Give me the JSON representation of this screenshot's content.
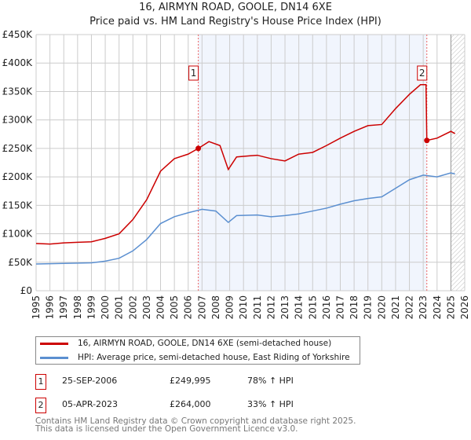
{
  "header": {
    "title": "16, AIRMYN ROAD, GOOLE, DN14 6XE",
    "subtitle": "Price paid vs. HM Land Registry's House Price Index (HPI)"
  },
  "chart_data": {
    "type": "line",
    "title": "16, AIRMYN ROAD, GOOLE, DN14 6XE",
    "subtitle": "Price paid vs. HM Land Registry's House Price Index (HPI)",
    "xlim": [
      1995,
      2026
    ],
    "ylim": [
      0,
      450000
    ],
    "y_ticks": [
      {
        "v": 0,
        "label": "£0"
      },
      {
        "v": 50000,
        "label": "£50K"
      },
      {
        "v": 100000,
        "label": "£100K"
      },
      {
        "v": 150000,
        "label": "£150K"
      },
      {
        "v": 200000,
        "label": "£200K"
      },
      {
        "v": 250000,
        "label": "£250K"
      },
      {
        "v": 300000,
        "label": "£300K"
      },
      {
        "v": 350000,
        "label": "£350K"
      },
      {
        "v": 400000,
        "label": "£400K"
      },
      {
        "v": 450000,
        "label": "£450K"
      }
    ],
    "x_ticks": [
      "1995",
      "1996",
      "1997",
      "1998",
      "1999",
      "2000",
      "2001",
      "2002",
      "2003",
      "2004",
      "2005",
      "2006",
      "2007",
      "2008",
      "2009",
      "2010",
      "2011",
      "2012",
      "2013",
      "2014",
      "2015",
      "2016",
      "2017",
      "2018",
      "2019",
      "2020",
      "2021",
      "2022",
      "2023",
      "2024",
      "2025",
      "2026"
    ],
    "grid": true,
    "shaded_range": [
      2006.73,
      2023.26
    ],
    "future_hatch_from": 2025.0,
    "series": [
      {
        "name": "16, AIRMYN ROAD, GOOLE, DN14 6XE (semi-detached house)",
        "color": "#cc0000",
        "x": [
          1995,
          1996,
          1997,
          1998,
          1999,
          2000,
          2001,
          2002,
          2003,
          2004,
          2005,
          2006,
          2006.73,
          2007.5,
          2008.3,
          2008.9,
          2009.5,
          2010.5,
          2011,
          2012,
          2013,
          2014,
          2015,
          2016,
          2017,
          2018,
          2019,
          2020,
          2021,
          2022,
          2022.8,
          2023.2,
          2023.26,
          2024,
          2025,
          2025.3
        ],
        "y": [
          83000,
          82000,
          84000,
          85000,
          86000,
          92000,
          100000,
          125000,
          160000,
          210000,
          232000,
          240000,
          249995,
          262000,
          255000,
          213000,
          235000,
          237000,
          238000,
          232000,
          228000,
          240000,
          243000,
          255000,
          268000,
          280000,
          290000,
          292000,
          320000,
          345000,
          362000,
          362000,
          264000,
          268000,
          280000,
          276000
        ]
      },
      {
        "name": "HPI: Average price, semi-detached house, East Riding of Yorkshire",
        "color": "#5b8fd0",
        "x": [
          1995,
          1997,
          1999,
          2000,
          2001,
          2002,
          2003,
          2004,
          2005,
          2006,
          2007,
          2008,
          2008.9,
          2009.5,
          2011,
          2012,
          2013,
          2014,
          2015,
          2016,
          2017,
          2018,
          2019,
          2020,
          2021,
          2022,
          2023,
          2024,
          2025,
          2025.3
        ],
        "y": [
          47000,
          48000,
          49000,
          52000,
          57000,
          70000,
          90000,
          118000,
          130000,
          137000,
          143000,
          140000,
          120000,
          132000,
          133000,
          130000,
          132000,
          135000,
          140000,
          145000,
          152000,
          158000,
          162000,
          165000,
          180000,
          195000,
          203000,
          200000,
          207000,
          205000
        ]
      }
    ],
    "annotations": [
      {
        "label": "1",
        "x": 2006.73,
        "y": 249995
      },
      {
        "label": "2",
        "x": 2023.26,
        "y": 264000
      }
    ]
  },
  "legend": {
    "items": [
      "16, AIRMYN ROAD, GOOLE, DN14 6XE (semi-detached house)",
      "HPI: Average price, semi-detached house, East Riding of Yorkshire"
    ]
  },
  "sales": [
    {
      "id": "1",
      "date": "25-SEP-2006",
      "price": "£249,995",
      "hpi": "78% ↑ HPI"
    },
    {
      "id": "2",
      "date": "05-APR-2023",
      "price": "£264,000",
      "hpi": "33% ↑ HPI"
    }
  ],
  "footer": {
    "line1": "Contains HM Land Registry data © Crown copyright and database right 2025.",
    "line2": "This data is licensed under the Open Government Licence v3.0."
  }
}
